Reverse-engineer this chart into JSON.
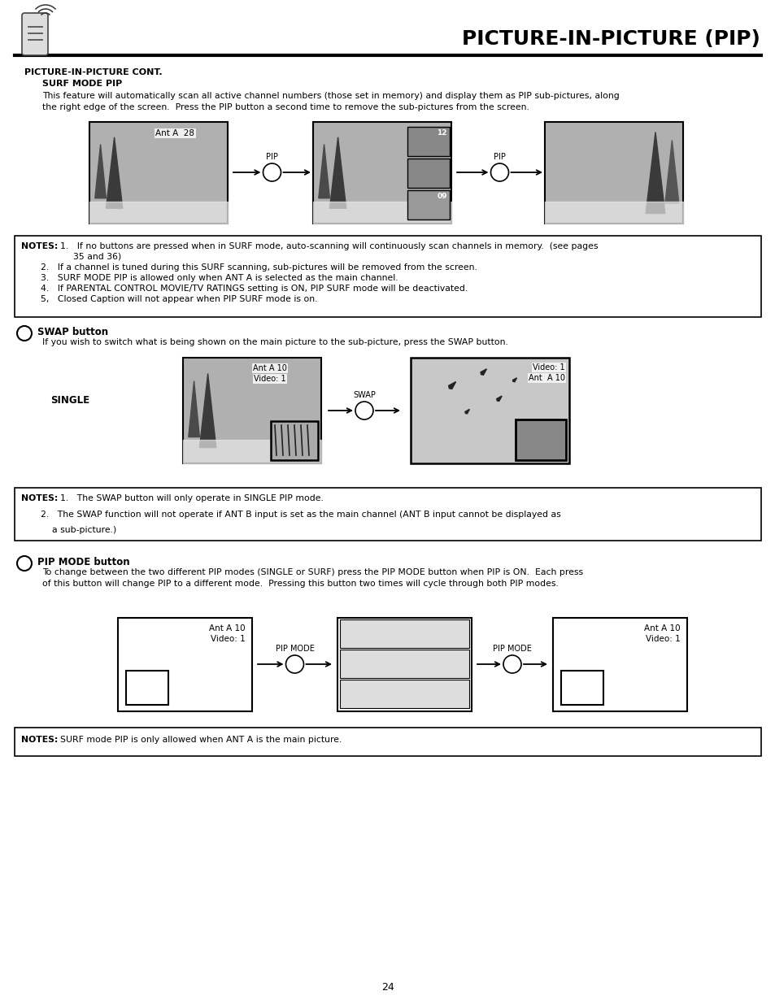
{
  "page_title": "PICTURE-IN-PICTURE (PIP)",
  "page_number": "24",
  "bg_color": "#ffffff",
  "section1_title": "PICTURE-IN-PICTURE CONT.",
  "section1_sub": "SURF MODE PIP",
  "section1_body1": "This feature will automatically scan all active channel numbers (those set in memory) and display them as PIP sub-pictures, along",
  "section1_body2": "the right edge of the screen.  Press the PIP button a second time to remove the sub-pictures from the screen.",
  "section2_title": "SWAP button",
  "section2_body": "If you wish to switch what is being shown on the main picture to the sub-picture, press the SWAP button.",
  "section2_label": "SINGLE",
  "section3_title": "PIP MODE button",
  "section3_body1": "To change between the two different PIP modes (SINGLE or SURF) press the PIP MODE button when PIP is ON.  Each press",
  "section3_body2": "of this button will change PIP to a different mode.  Pressing this button two times will cycle through both PIP modes.",
  "notes1_bold": "NOTES:",
  "notes1_1": "1.   If no buttons are pressed when in SURF mode, auto-scanning will continuously scan channels in memory.  (see pages",
  "notes1_1b": "35 and 36)",
  "notes1_2": "2.   If a channel is tuned during this SURF scanning, sub-pictures will be removed from the screen.",
  "notes1_3": "3.   SURF MODE PIP is allowed only when ANT A is selected as the main channel.",
  "notes1_4": "4.   If PARENTAL CONTROL MOVIE/TV RATINGS setting is ON, PIP SURF mode will be deactivated.",
  "notes1_5": "5,   Closed Caption will not appear when PIP SURF mode is on.",
  "notes2_bold": "NOTES:",
  "notes2_1": "1.   The SWAP button will only operate in SINGLE PIP mode.",
  "notes2_2": "2.   The SWAP function will not operate if ANT B input is set as the main channel (ANT B input cannot be displayed as",
  "notes2_2b": "a sub-picture.)",
  "notes3_bold": "NOTES:",
  "notes3_1": "SURF mode PIP is only allowed when ANT A is the main picture."
}
